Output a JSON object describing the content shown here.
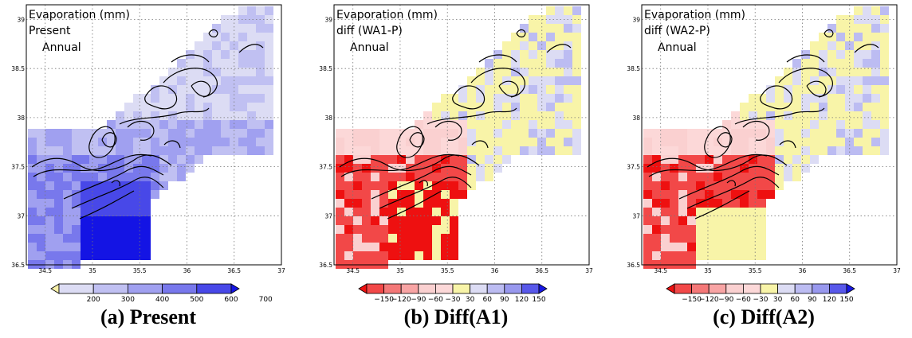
{
  "chart_data": [
    {
      "type": "heatmap",
      "title": "Evaporation (mm)",
      "subtitle": "Present",
      "period": "Annual",
      "caption": "(a) Present",
      "xticks": [
        34.5,
        35,
        35.5,
        36,
        36.5,
        37
      ],
      "yticks": [
        36.5,
        37,
        37.5,
        38,
        38.5,
        39
      ],
      "xlim": [
        34.3,
        37.0
      ],
      "ylim": [
        36.5,
        39.15
      ],
      "grid": true,
      "colorbar": {
        "labels": [
          200,
          300,
          400,
          500,
          600,
          700
        ],
        "colors": [
          "#f8f0a8",
          "#dcdcf4",
          "#c0c0f2",
          "#a0a0f0",
          "#7878ec",
          "#4848e8",
          "#1414e4"
        ]
      }
    },
    {
      "type": "heatmap",
      "title": "Evaporation (mm)",
      "subtitle": "diff (WA1-P)",
      "period": "Annual",
      "caption": "(b) Diff(A1)",
      "xticks": [
        34.5,
        35,
        35.5,
        36,
        36.5,
        37
      ],
      "yticks": [
        36.5,
        37,
        37.5,
        38,
        38.5,
        39
      ],
      "xlim": [
        34.3,
        37.0
      ],
      "ylim": [
        36.5,
        39.15
      ],
      "grid": true,
      "colorbar": {
        "labels": [
          -150,
          -120,
          -90,
          -60,
          -30,
          30,
          60,
          90,
          120,
          150
        ],
        "colors": [
          "#ee1010",
          "#f24848",
          "#f47878",
          "#f8a4a4",
          "#fad0d0",
          "#fcd8d8",
          "#f8f4a8",
          "#dcdcf4",
          "#bcbcf2",
          "#9898ee",
          "#5858ea",
          "#1818e4"
        ]
      }
    },
    {
      "type": "heatmap",
      "title": "Evaporation (mm)",
      "subtitle": "diff (WA2-P)",
      "period": "Annual",
      "caption": "(c) Diff(A2)",
      "xticks": [
        34.5,
        35,
        35.5,
        36,
        36.5,
        37
      ],
      "yticks": [
        36.5,
        37,
        37.5,
        38,
        38.5,
        39
      ],
      "xlim": [
        34.3,
        37.0
      ],
      "ylim": [
        36.5,
        39.15
      ],
      "grid": true,
      "colorbar": {
        "labels": [
          -150,
          -120,
          -90,
          -60,
          -30,
          30,
          60,
          90,
          120,
          150
        ],
        "colors": [
          "#ee1010",
          "#f24848",
          "#f47878",
          "#f8a4a4",
          "#fad0d0",
          "#fcd8d8",
          "#f8f4a8",
          "#dcdcf4",
          "#bcbcf2",
          "#9898ee",
          "#5858ea",
          "#1818e4"
        ]
      }
    }
  ]
}
